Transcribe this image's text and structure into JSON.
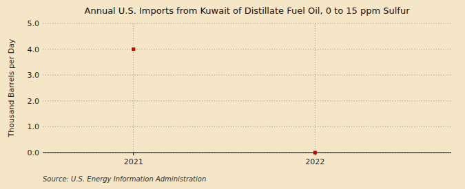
{
  "chart_data": {
    "type": "scatter",
    "title": "Annual U.S. Imports from Kuwait of Distillate Fuel Oil, 0 to 15 ppm Sulfur",
    "ylabel": "Thousand Barrels per Day",
    "source": "Source: U.S. Energy Information Administration",
    "x": [
      2021,
      2022
    ],
    "values": [
      4.0,
      0.0
    ],
    "xlim": [
      2020.5,
      2022.75
    ],
    "ylim": [
      0.0,
      5.0
    ],
    "xticks": [
      2021,
      2022
    ],
    "yticks": [
      {
        "value": 0.0,
        "label": "0.0"
      },
      {
        "value": 1.0,
        "label": "1.0"
      },
      {
        "value": 2.0,
        "label": "2.0"
      },
      {
        "value": 3.0,
        "label": "3.0"
      },
      {
        "value": 4.0,
        "label": "4.0"
      },
      {
        "value": 5.0,
        "label": "5.0"
      }
    ],
    "grid": true,
    "color": "#cc0000",
    "marker": "square"
  }
}
